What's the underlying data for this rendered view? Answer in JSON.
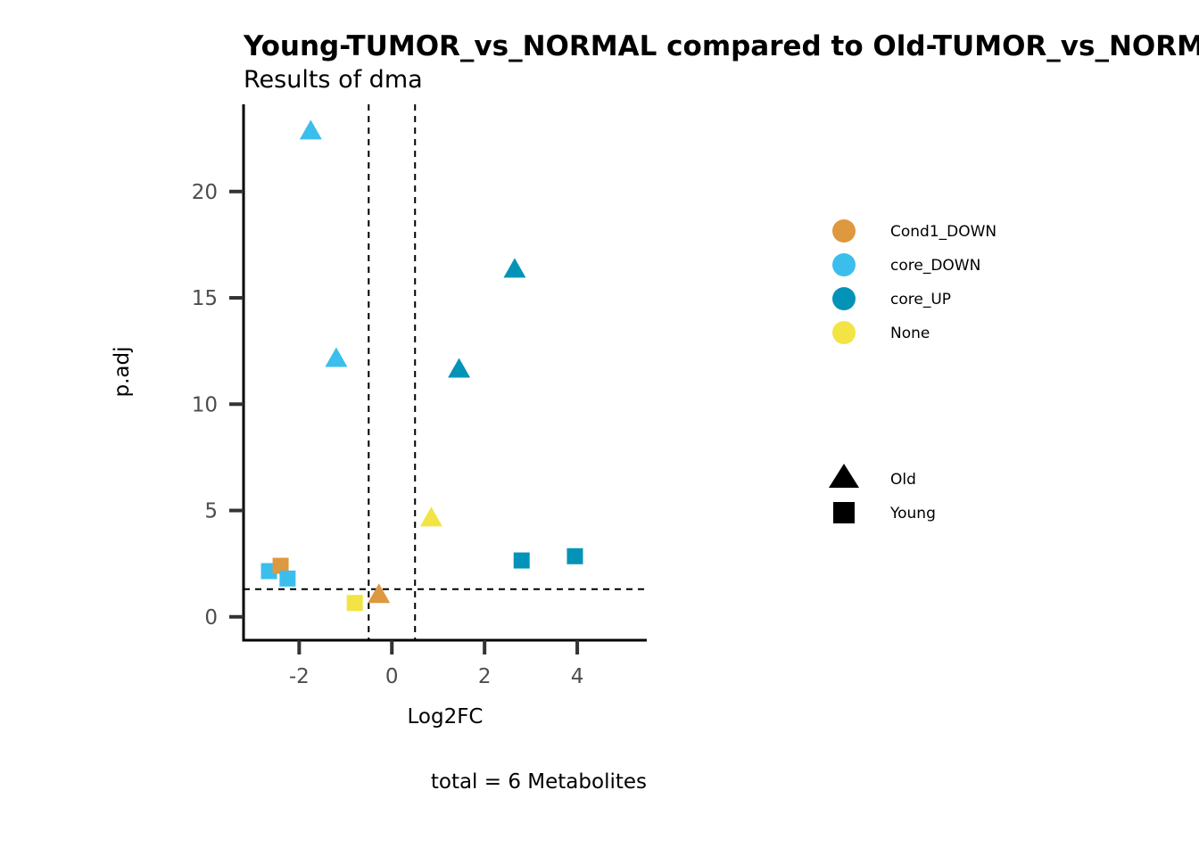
{
  "chart_data": {
    "type": "scatter",
    "title": "Young-TUMOR_vs_NORMAL compared to Old-TUMOR_vs_NORMAL",
    "subtitle": "Results of dma",
    "xlabel": "Log2FC",
    "ylabel": "p.adj",
    "caption": "total = 6 Metabolites",
    "xlim": [
      -3.2,
      5.5
    ],
    "ylim": [
      -1.1,
      24.1
    ],
    "xticks": [
      -2,
      0,
      2,
      4
    ],
    "yticks": [
      0,
      5,
      10,
      15,
      20
    ],
    "reference_lines": {
      "vertical": [
        -0.5,
        0.5
      ],
      "horizontal": [
        1.3
      ]
    },
    "grid": false,
    "colors": {
      "Cond1_DOWN": "#DE983F",
      "core_DOWN": "#3BBEEC",
      "core_UP": "#0493B8",
      "None": "#F1E444"
    },
    "shapes": {
      "Old": "triangle",
      "Young": "square"
    },
    "legend_color": {
      "entries": [
        "Cond1_DOWN",
        "core_DOWN",
        "core_UP",
        "None"
      ],
      "placement": "right"
    },
    "legend_shape": {
      "entries": [
        "Old",
        "Young"
      ],
      "placement": "right"
    },
    "points": [
      {
        "x": -1.75,
        "y": 22.8,
        "color": "core_DOWN",
        "shape": "Old"
      },
      {
        "x": -1.2,
        "y": 12.1,
        "color": "core_DOWN",
        "shape": "Old"
      },
      {
        "x": 2.65,
        "y": 16.3,
        "color": "core_UP",
        "shape": "Old"
      },
      {
        "x": 1.45,
        "y": 11.6,
        "color": "core_UP",
        "shape": "Old"
      },
      {
        "x": 0.85,
        "y": 4.6,
        "color": "None",
        "shape": "Old"
      },
      {
        "x": -0.28,
        "y": 1.0,
        "color": "Cond1_DOWN",
        "shape": "Old"
      },
      {
        "x": -2.65,
        "y": 2.15,
        "color": "core_DOWN",
        "shape": "Young"
      },
      {
        "x": -2.4,
        "y": 2.4,
        "color": "Cond1_DOWN",
        "shape": "Young"
      },
      {
        "x": -2.25,
        "y": 1.8,
        "color": "core_DOWN",
        "shape": "Young"
      },
      {
        "x": -0.8,
        "y": 0.65,
        "color": "None",
        "shape": "Young"
      },
      {
        "x": 2.8,
        "y": 2.65,
        "color": "core_UP",
        "shape": "Young"
      },
      {
        "x": 3.95,
        "y": 2.85,
        "color": "core_UP",
        "shape": "Young"
      }
    ]
  }
}
